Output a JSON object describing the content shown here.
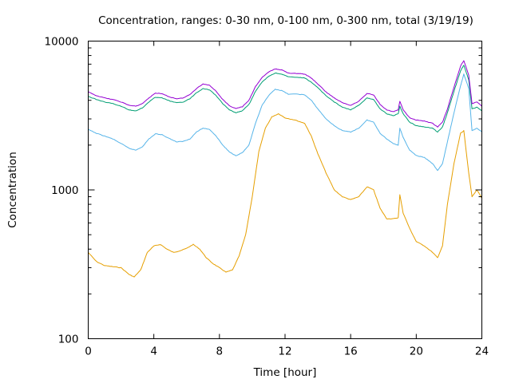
{
  "chart_data": {
    "type": "line",
    "title": "Concentration, ranges: 0-30 nm, 0-100 nm, 0-300 nm, total (3/19/19)",
    "xlabel": "Time [hour]",
    "ylabel": "Concentration",
    "xlim": [
      0,
      24
    ],
    "ylim": [
      100,
      10000
    ],
    "yscale": "log",
    "grid": false,
    "legend": "none",
    "x_ticks": [
      0,
      4,
      8,
      12,
      16,
      20,
      24
    ],
    "x_tick_labels": [
      "0",
      "4",
      "8",
      "12",
      "16",
      "20",
      "24"
    ],
    "y_major_ticks": [
      100,
      1000,
      10000
    ],
    "y_tick_labels": [
      "100",
      "1000",
      "10000"
    ],
    "series": [
      {
        "color": "#e69f00",
        "points": [
          [
            0,
            380
          ],
          [
            0.5,
            330
          ],
          [
            1,
            310
          ],
          [
            1.5,
            305
          ],
          [
            2,
            300
          ],
          [
            2.5,
            270
          ],
          [
            2.8,
            260
          ],
          [
            3.2,
            290
          ],
          [
            3.6,
            380
          ],
          [
            4,
            420
          ],
          [
            4.4,
            430
          ],
          [
            4.8,
            400
          ],
          [
            5.2,
            380
          ],
          [
            5.6,
            390
          ],
          [
            6,
            405
          ],
          [
            6.4,
            430
          ],
          [
            6.8,
            400
          ],
          [
            7.2,
            350
          ],
          [
            7.6,
            320
          ],
          [
            8,
            300
          ],
          [
            8.4,
            280
          ],
          [
            8.8,
            290
          ],
          [
            9.2,
            360
          ],
          [
            9.6,
            500
          ],
          [
            10,
            900
          ],
          [
            10.4,
            1800
          ],
          [
            10.8,
            2600
          ],
          [
            11.2,
            3100
          ],
          [
            11.6,
            3250
          ],
          [
            12,
            3050
          ],
          [
            12.6,
            2950
          ],
          [
            13.2,
            2800
          ],
          [
            13.6,
            2300
          ],
          [
            14,
            1750
          ],
          [
            14.5,
            1300
          ],
          [
            15,
            1000
          ],
          [
            15.5,
            900
          ],
          [
            16,
            860
          ],
          [
            16.5,
            900
          ],
          [
            17,
            1050
          ],
          [
            17.4,
            1000
          ],
          [
            17.8,
            750
          ],
          [
            18.2,
            640
          ],
          [
            18.6,
            640
          ],
          [
            18.9,
            650
          ],
          [
            19,
            930
          ],
          [
            19.2,
            700
          ],
          [
            19.6,
            550
          ],
          [
            20,
            450
          ],
          [
            20.5,
            420
          ],
          [
            21,
            380
          ],
          [
            21.3,
            350
          ],
          [
            21.6,
            420
          ],
          [
            21.9,
            800
          ],
          [
            22.3,
            1500
          ],
          [
            22.7,
            2400
          ],
          [
            22.9,
            2500
          ],
          [
            23.2,
            1300
          ],
          [
            23.4,
            900
          ],
          [
            23.7,
            1000
          ],
          [
            24,
            880
          ]
        ]
      },
      {
        "color": "#56b4e9",
        "points": [
          [
            0,
            2550
          ],
          [
            0.5,
            2400
          ],
          [
            1,
            2300
          ],
          [
            1.5,
            2200
          ],
          [
            2,
            2050
          ],
          [
            2.5,
            1900
          ],
          [
            2.9,
            1850
          ],
          [
            3.3,
            1950
          ],
          [
            3.7,
            2200
          ],
          [
            4.1,
            2380
          ],
          [
            4.5,
            2350
          ],
          [
            5,
            2200
          ],
          [
            5.4,
            2100
          ],
          [
            5.8,
            2120
          ],
          [
            6.2,
            2200
          ],
          [
            6.6,
            2450
          ],
          [
            7,
            2600
          ],
          [
            7.4,
            2550
          ],
          [
            7.8,
            2300
          ],
          [
            8.2,
            2000
          ],
          [
            8.6,
            1800
          ],
          [
            9,
            1700
          ],
          [
            9.4,
            1780
          ],
          [
            9.8,
            2000
          ],
          [
            10.2,
            2800
          ],
          [
            10.6,
            3700
          ],
          [
            11,
            4300
          ],
          [
            11.4,
            4750
          ],
          [
            11.8,
            4650
          ],
          [
            12.2,
            4400
          ],
          [
            12.8,
            4400
          ],
          [
            13.2,
            4350
          ],
          [
            13.6,
            4000
          ],
          [
            14,
            3500
          ],
          [
            14.5,
            3000
          ],
          [
            15,
            2700
          ],
          [
            15.5,
            2500
          ],
          [
            16,
            2450
          ],
          [
            16.5,
            2600
          ],
          [
            17,
            2950
          ],
          [
            17.4,
            2850
          ],
          [
            17.8,
            2400
          ],
          [
            18.2,
            2200
          ],
          [
            18.6,
            2050
          ],
          [
            18.9,
            2000
          ],
          [
            19,
            2600
          ],
          [
            19.2,
            2250
          ],
          [
            19.6,
            1850
          ],
          [
            20,
            1700
          ],
          [
            20.5,
            1650
          ],
          [
            21,
            1500
          ],
          [
            21.3,
            1350
          ],
          [
            21.6,
            1500
          ],
          [
            21.9,
            2100
          ],
          [
            22.3,
            3300
          ],
          [
            22.7,
            5000
          ],
          [
            22.9,
            6000
          ],
          [
            23.2,
            4800
          ],
          [
            23.4,
            2500
          ],
          [
            23.7,
            2600
          ],
          [
            24,
            2450
          ]
        ]
      },
      {
        "color": "#009e73",
        "points": [
          [
            0,
            4250
          ],
          [
            0.5,
            4050
          ],
          [
            1,
            3900
          ],
          [
            1.5,
            3800
          ],
          [
            2,
            3650
          ],
          [
            2.5,
            3450
          ],
          [
            2.9,
            3400
          ],
          [
            3.3,
            3550
          ],
          [
            3.7,
            3900
          ],
          [
            4.1,
            4200
          ],
          [
            4.5,
            4150
          ],
          [
            5,
            3950
          ],
          [
            5.4,
            3850
          ],
          [
            5.8,
            3900
          ],
          [
            6.2,
            4100
          ],
          [
            6.6,
            4500
          ],
          [
            7,
            4800
          ],
          [
            7.4,
            4700
          ],
          [
            7.8,
            4300
          ],
          [
            8.2,
            3800
          ],
          [
            8.6,
            3450
          ],
          [
            9,
            3300
          ],
          [
            9.4,
            3400
          ],
          [
            9.8,
            3750
          ],
          [
            10.2,
            4600
          ],
          [
            10.6,
            5300
          ],
          [
            11,
            5800
          ],
          [
            11.4,
            6100
          ],
          [
            11.8,
            6000
          ],
          [
            12.2,
            5750
          ],
          [
            12.8,
            5700
          ],
          [
            13.2,
            5650
          ],
          [
            13.6,
            5300
          ],
          [
            14,
            4850
          ],
          [
            14.5,
            4300
          ],
          [
            15,
            3900
          ],
          [
            15.5,
            3600
          ],
          [
            16,
            3450
          ],
          [
            16.5,
            3700
          ],
          [
            17,
            4150
          ],
          [
            17.4,
            4050
          ],
          [
            17.8,
            3500
          ],
          [
            18.2,
            3250
          ],
          [
            18.6,
            3150
          ],
          [
            18.9,
            3250
          ],
          [
            19,
            3650
          ],
          [
            19.2,
            3250
          ],
          [
            19.6,
            2850
          ],
          [
            20,
            2700
          ],
          [
            20.5,
            2650
          ],
          [
            21,
            2600
          ],
          [
            21.3,
            2450
          ],
          [
            21.6,
            2650
          ],
          [
            21.9,
            3300
          ],
          [
            22.3,
            4600
          ],
          [
            22.7,
            6300
          ],
          [
            22.9,
            6900
          ],
          [
            23.2,
            5500
          ],
          [
            23.4,
            3500
          ],
          [
            23.7,
            3600
          ],
          [
            24,
            3400
          ]
        ]
      },
      {
        "color": "#9400d3",
        "points": [
          [
            0,
            4550
          ],
          [
            0.5,
            4300
          ],
          [
            1,
            4150
          ],
          [
            1.5,
            4050
          ],
          [
            2,
            3900
          ],
          [
            2.5,
            3700
          ],
          [
            2.9,
            3650
          ],
          [
            3.3,
            3800
          ],
          [
            3.7,
            4150
          ],
          [
            4.1,
            4480
          ],
          [
            4.5,
            4420
          ],
          [
            5,
            4200
          ],
          [
            5.4,
            4100
          ],
          [
            5.8,
            4150
          ],
          [
            6.2,
            4380
          ],
          [
            6.6,
            4800
          ],
          [
            7,
            5150
          ],
          [
            7.4,
            5050
          ],
          [
            7.8,
            4600
          ],
          [
            8.2,
            4050
          ],
          [
            8.6,
            3680
          ],
          [
            9,
            3520
          ],
          [
            9.4,
            3620
          ],
          [
            9.8,
            4000
          ],
          [
            10.2,
            4950
          ],
          [
            10.6,
            5700
          ],
          [
            11,
            6200
          ],
          [
            11.4,
            6500
          ],
          [
            11.8,
            6400
          ],
          [
            12.2,
            6100
          ],
          [
            12.8,
            6050
          ],
          [
            13.2,
            6000
          ],
          [
            13.6,
            5650
          ],
          [
            14,
            5150
          ],
          [
            14.5,
            4550
          ],
          [
            15,
            4150
          ],
          [
            15.5,
            3850
          ],
          [
            16,
            3700
          ],
          [
            16.5,
            3950
          ],
          [
            17,
            4450
          ],
          [
            17.4,
            4350
          ],
          [
            17.8,
            3750
          ],
          [
            18.2,
            3450
          ],
          [
            18.6,
            3350
          ],
          [
            18.9,
            3450
          ],
          [
            19,
            3950
          ],
          [
            19.2,
            3450
          ],
          [
            19.6,
            3050
          ],
          [
            20,
            2950
          ],
          [
            20.5,
            2900
          ],
          [
            21,
            2800
          ],
          [
            21.3,
            2650
          ],
          [
            21.6,
            2850
          ],
          [
            21.9,
            3500
          ],
          [
            22.3,
            4900
          ],
          [
            22.7,
            6800
          ],
          [
            22.9,
            7400
          ],
          [
            23.2,
            5900
          ],
          [
            23.4,
            3800
          ],
          [
            23.7,
            3900
          ],
          [
            24,
            3650
          ]
        ]
      }
    ]
  }
}
